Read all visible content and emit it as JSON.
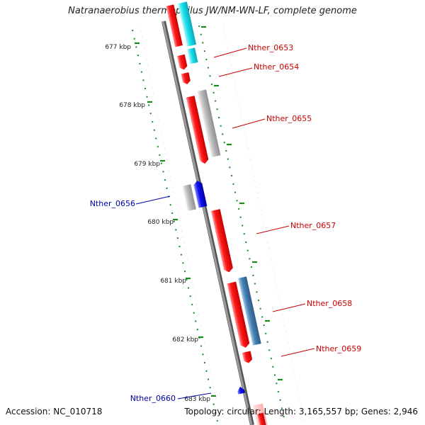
{
  "title": "Natranaerobius thermophilus JW/NM-WN-LF, complete genome",
  "footer": {
    "accession": "Accession: NC_010718",
    "summary": "Topology: circular; Length: 3,165,557 bp; Genes: 2,946"
  },
  "colors": {
    "backbone": "#8a8a8a",
    "forward_cds": "#ff2020",
    "reverse_cds": "#1010ee",
    "cyan_feature": "#18e0ee",
    "gray_feature": "#b8b8b8",
    "steelblue_feature": "#4682b4",
    "tick": "#1a8a1a",
    "label_red": "#cc0000",
    "label_blue": "#0000aa"
  },
  "ruler": {
    "unit": "kbp",
    "labels": [
      "677 kbp",
      "678 kbp",
      "679 kbp",
      "680 kbp",
      "681 kbp",
      "682 kbp",
      "683 kbp"
    ]
  },
  "genes": [
    {
      "id": "Nther_0653",
      "strand": "forward"
    },
    {
      "id": "Nther_0654",
      "strand": "forward"
    },
    {
      "id": "Nther_0655",
      "strand": "forward"
    },
    {
      "id": "Nther_0656",
      "strand": "reverse"
    },
    {
      "id": "Nther_0657",
      "strand": "forward"
    },
    {
      "id": "Nther_0658",
      "strand": "forward"
    },
    {
      "id": "Nther_0659",
      "strand": "forward"
    },
    {
      "id": "Nther_0660",
      "strand": "reverse"
    }
  ]
}
